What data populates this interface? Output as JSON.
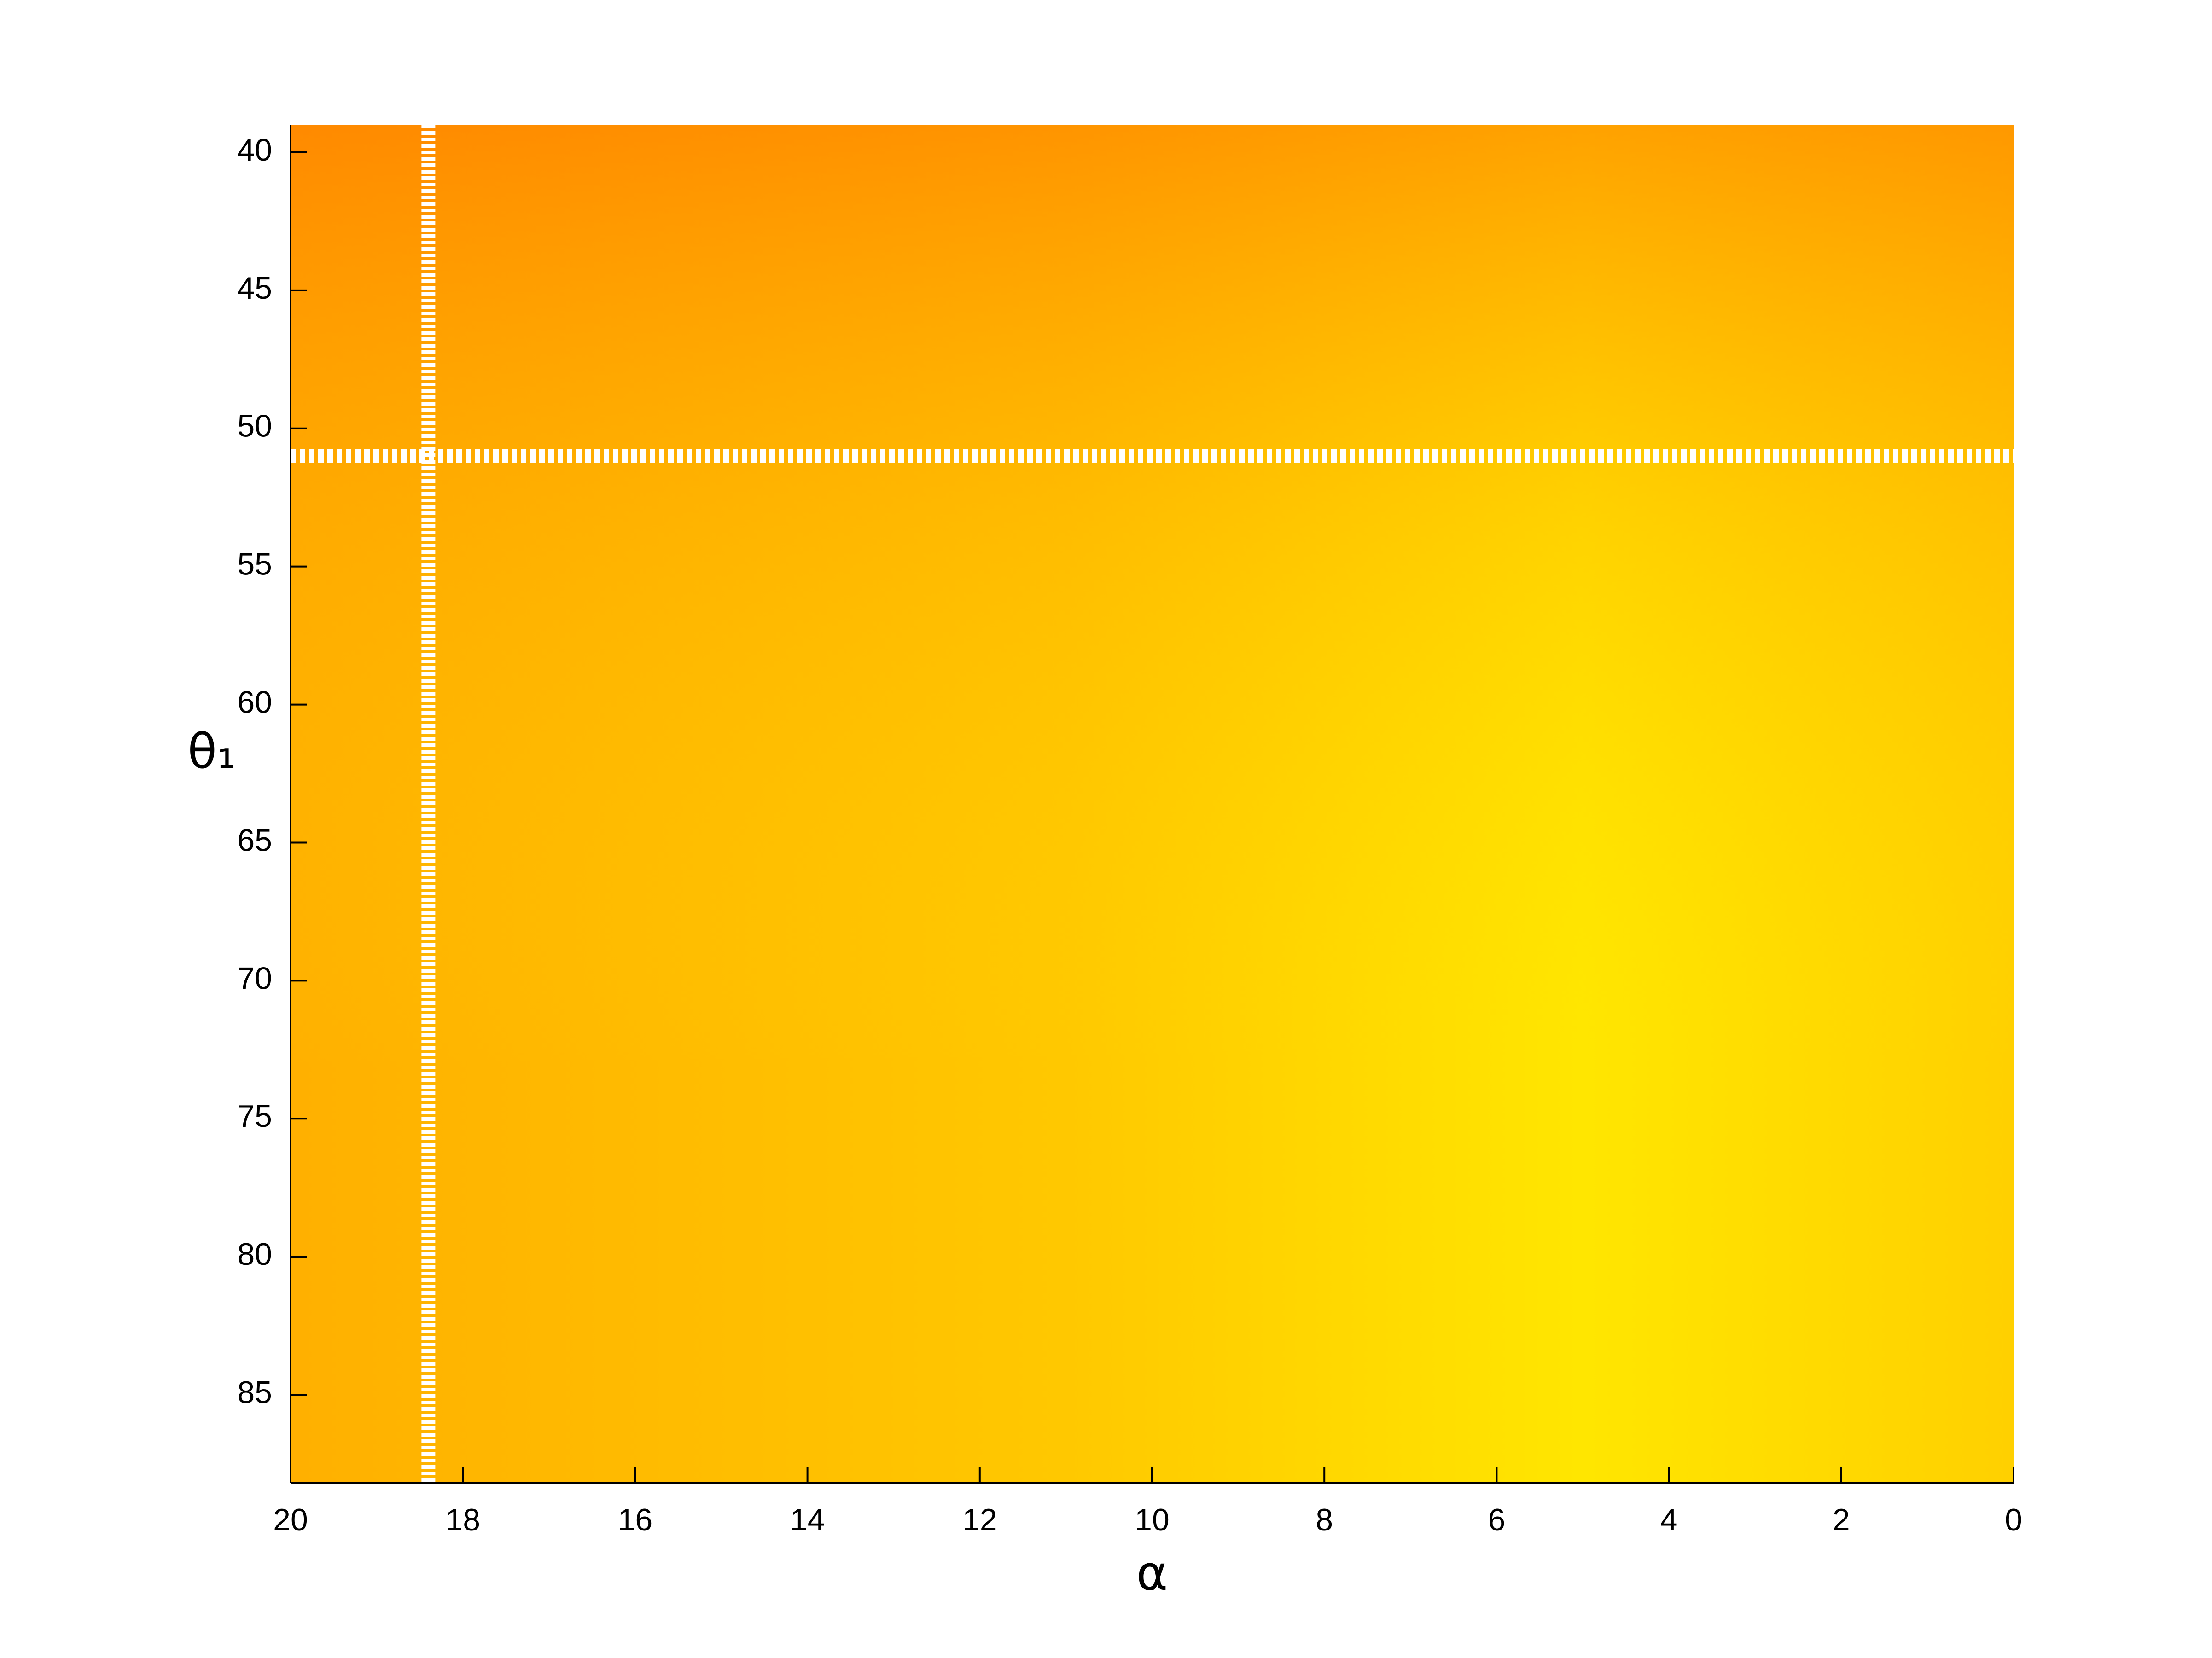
{
  "chart_data": {
    "type": "heatmap",
    "xlabel": "α",
    "ylabel": "θ₁",
    "xlim": [
      20,
      0
    ],
    "ylim": [
      39,
      88.2
    ],
    "xticks": [
      20,
      18,
      16,
      14,
      12,
      10,
      8,
      6,
      4,
      2,
      0
    ],
    "yticks": [
      40,
      45,
      50,
      55,
      60,
      65,
      70,
      75,
      80,
      85
    ],
    "reference_lines": {
      "x": 18.4,
      "y": 51,
      "color": "#ffffff"
    }
  }
}
